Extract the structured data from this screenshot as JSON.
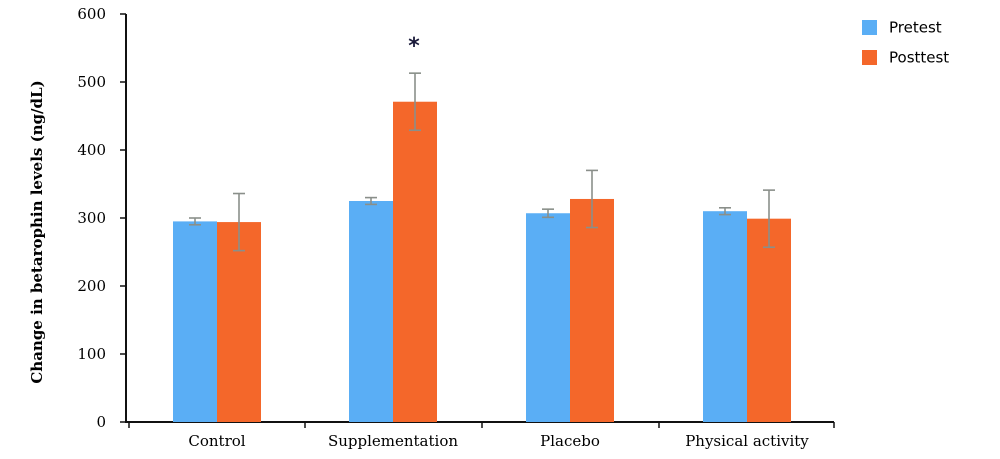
{
  "chart_data": {
    "type": "bar",
    "title": "",
    "xlabel": "",
    "ylabel": "Change in betarophin levels (ng/dL)",
    "ylim": [
      0,
      600
    ],
    "yticks": [
      0,
      100,
      200,
      300,
      400,
      500,
      600
    ],
    "grid": false,
    "legend_position": "top-right",
    "categories": [
      "Control",
      "Supplementation",
      "Placebo",
      "Physical activity"
    ],
    "series": [
      {
        "name": "Pretest",
        "color": "#5aaef5",
        "values": [
          295,
          325,
          307,
          310
        ],
        "errors": [
          5,
          5,
          6,
          5
        ]
      },
      {
        "name": "Posttest",
        "color": "#f4672a",
        "values": [
          294,
          471,
          328,
          299
        ],
        "errors": [
          42,
          42,
          42,
          42
        ]
      }
    ],
    "annotations": [
      {
        "text": "*",
        "category": "Supplementation",
        "series": "Posttest"
      }
    ],
    "error_bar_color": "#8a8f8a"
  }
}
